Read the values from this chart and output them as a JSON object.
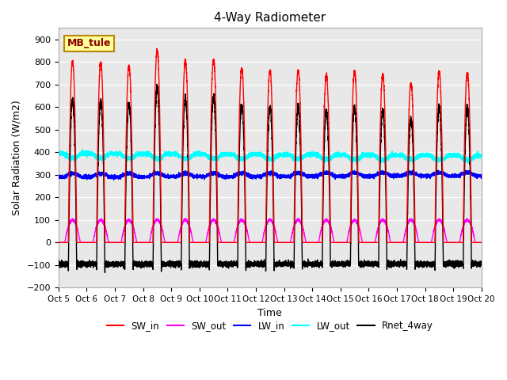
{
  "title": "4-Way Radiometer",
  "xlabel": "Time",
  "ylabel": "Solar Radiation (W/m2)",
  "ylim": [
    -200,
    950
  ],
  "yticks": [
    -200,
    -100,
    0,
    100,
    200,
    300,
    400,
    500,
    600,
    700,
    800,
    900
  ],
  "xtick_labels": [
    "Oct 5",
    "Oct 6",
    "Oct 7",
    "Oct 8",
    "Oct 9",
    "Oct 10",
    "Oct 11",
    "Oct 12",
    "Oct 13",
    "Oct 14",
    "Oct 15",
    "Oct 16",
    "Oct 17",
    "Oct 18",
    "Oct 19",
    "Oct 20"
  ],
  "annotation_text": "MB_tule",
  "annotation_color": "#8B0000",
  "annotation_bg": "#FFFF99",
  "series": {
    "SW_in": {
      "color": "red",
      "lw": 1.0
    },
    "SW_out": {
      "color": "magenta",
      "lw": 1.0
    },
    "LW_in": {
      "color": "blue",
      "lw": 1.0
    },
    "LW_out": {
      "color": "cyan",
      "lw": 1.0
    },
    "Rnet_4way": {
      "color": "black",
      "lw": 1.0
    }
  },
  "legend_entries": [
    "SW_in",
    "SW_out",
    "LW_in",
    "LW_out",
    "Rnet_4way"
  ],
  "legend_colors": [
    "red",
    "magenta",
    "blue",
    "cyan",
    "black"
  ],
  "background_color": "#e8e8e8",
  "grid_color": "white",
  "num_days": 15,
  "points_per_day": 480,
  "sw_in_peaks": [
    800,
    795,
    780,
    850,
    805,
    808,
    770,
    760,
    760,
    740,
    755,
    740,
    705,
    755,
    750
  ],
  "sw_out_peaks": [
    100,
    100,
    100,
    100,
    100,
    100,
    100,
    100,
    100,
    100,
    100,
    100,
    100,
    100,
    100
  ],
  "lw_in_base": 290,
  "lw_out_base": 375,
  "rnet_night": -95
}
